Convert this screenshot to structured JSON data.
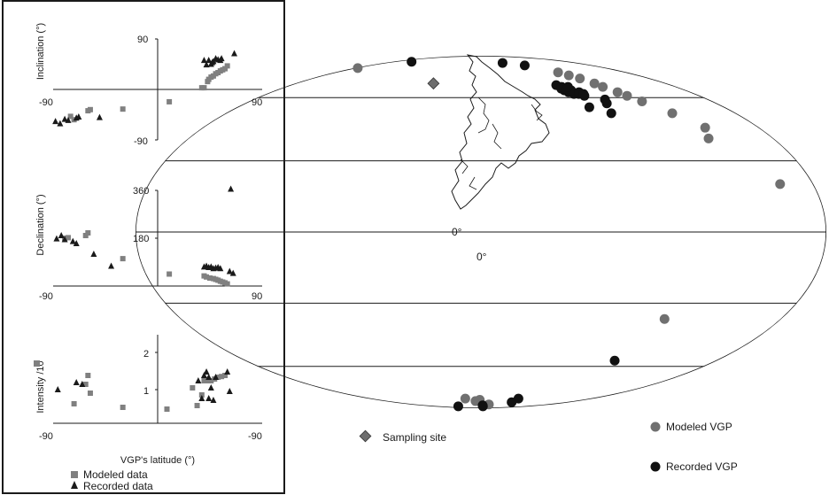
{
  "chart_data": [
    {
      "type": "scatter",
      "panel": "inclination",
      "xlabel": "",
      "ylabel": "Inclination (°)",
      "xlim": [
        -90,
        90
      ],
      "ylim": [
        -90,
        90
      ],
      "x_tick_labels": [
        "-90",
        "90"
      ],
      "y_tick_labels": [
        "90",
        "-90"
      ],
      "series": [
        {
          "name": "Modeled data",
          "marker": "square",
          "color": "#808080",
          "points": [
            [
              -75,
              -48
            ],
            [
              -72,
              -54
            ],
            [
              -60,
              -38
            ],
            [
              -58,
              -36
            ],
            [
              -30,
              -35
            ],
            [
              10,
              -22
            ],
            [
              38,
              3
            ],
            [
              40,
              3
            ],
            [
              43,
              14
            ],
            [
              44,
              18
            ],
            [
              46,
              22
            ],
            [
              48,
              24
            ],
            [
              50,
              28
            ],
            [
              52,
              30
            ],
            [
              54,
              33
            ],
            [
              56,
              35
            ],
            [
              58,
              37
            ],
            [
              60,
              42
            ]
          ]
        },
        {
          "name": "Recorded data",
          "marker": "triangle",
          "color": "#1a1a1a",
          "points": [
            [
              -88,
              -57
            ],
            [
              -84,
              -61
            ],
            [
              -80,
              -53
            ],
            [
              -77,
              -55
            ],
            [
              -70,
              -51
            ],
            [
              -68,
              -49
            ],
            [
              -50,
              -50
            ],
            [
              40,
              52
            ],
            [
              42,
              44
            ],
            [
              44,
              52
            ],
            [
              46,
              45
            ],
            [
              47,
              48
            ],
            [
              48,
              50
            ],
            [
              50,
              55
            ],
            [
              52,
              53
            ],
            [
              54,
              52
            ],
            [
              55,
              55
            ],
            [
              66,
              64
            ]
          ]
        }
      ]
    },
    {
      "type": "scatter",
      "panel": "declination",
      "xlabel": "",
      "ylabel": "Declination (°)",
      "xlim": [
        -90,
        90
      ],
      "ylim": [
        0,
        360
      ],
      "x_tick_labels": [
        "-90",
        "90"
      ],
      "y_tick_labels": [
        "360",
        "180"
      ],
      "series": [
        {
          "name": "Modeled data",
          "marker": "square",
          "color": "#808080",
          "points": [
            [
              -80,
              180
            ],
            [
              -77,
              182
            ],
            [
              -62,
              190
            ],
            [
              -60,
              200
            ],
            [
              -30,
              103
            ],
            [
              10,
              45
            ],
            [
              40,
              38
            ],
            [
              42,
              34
            ],
            [
              45,
              30
            ],
            [
              48,
              28
            ],
            [
              50,
              25
            ],
            [
              52,
              22
            ],
            [
              54,
              18
            ],
            [
              56,
              15
            ],
            [
              58,
              12
            ],
            [
              60,
              8
            ]
          ]
        },
        {
          "name": "Recorded data",
          "marker": "triangle",
          "color": "#1a1a1a",
          "points": [
            [
              -87,
              178
            ],
            [
              -83,
              190
            ],
            [
              -80,
              175
            ],
            [
              -73,
              168
            ],
            [
              -70,
              160
            ],
            [
              -55,
              120
            ],
            [
              -40,
              75
            ],
            [
              40,
              72
            ],
            [
              42,
              75
            ],
            [
              44,
              70
            ],
            [
              46,
              72
            ],
            [
              48,
              66
            ],
            [
              50,
              68
            ],
            [
              52,
              70
            ],
            [
              54,
              66
            ],
            [
              62,
              55
            ],
            [
              65,
              48
            ],
            [
              63,
              365
            ]
          ]
        }
      ]
    },
    {
      "type": "scatter",
      "panel": "intensity",
      "xlabel": "VGP's latitude (°)",
      "ylabel": "Intensity /10",
      "xlim": [
        -90,
        90
      ],
      "ylim": [
        0,
        2.5
      ],
      "x_tick_labels": [
        "-90",
        "-90"
      ],
      "y_tick_labels": [
        "2",
        "1"
      ],
      "series": [
        {
          "name": "Modeled data",
          "marker": "square",
          "color": "#808080",
          "points": [
            [
              -72,
              0.55
            ],
            [
              -62,
              1.1
            ],
            [
              -60,
              1.35
            ],
            [
              -58,
              0.85
            ],
            [
              -30,
              0.45
            ],
            [
              8,
              0.4
            ],
            [
              30,
              1.0
            ],
            [
              34,
              0.5
            ],
            [
              38,
              0.8
            ],
            [
              40,
              1.2
            ],
            [
              43,
              1.2
            ],
            [
              46,
              1.2
            ],
            [
              49,
              1.25
            ],
            [
              52,
              1.3
            ],
            [
              55,
              1.32
            ],
            [
              58,
              1.35
            ]
          ]
        },
        {
          "name": "Recorded data",
          "marker": "triangle",
          "color": "#1a1a1a",
          "points": [
            [
              -86,
              0.95
            ],
            [
              -70,
              1.15
            ],
            [
              -65,
              1.1
            ],
            [
              35,
              1.2
            ],
            [
              38,
              0.7
            ],
            [
              40,
              1.35
            ],
            [
              42,
              1.45
            ],
            [
              44,
              1.3
            ],
            [
              46,
              1.0
            ],
            [
              48,
              0.65
            ],
            [
              50,
              1.3
            ],
            [
              60,
              1.45
            ],
            [
              62,
              0.9
            ],
            [
              44,
              0.7
            ]
          ]
        }
      ]
    },
    {
      "type": "scatter",
      "panel": "vgp-map",
      "projection": "mollweide",
      "xlabel": "",
      "ylabel": "",
      "center_labels": [
        "0°",
        "0°"
      ],
      "series": [
        {
          "name": "Modeled VGP",
          "marker": "circle",
          "color": "#707070",
          "points": [
            [
              -175,
              78
            ],
            [
              95,
              75
            ],
            [
              100,
              73
            ],
            [
              105,
              71
            ],
            [
              110,
              68
            ],
            [
              112,
              66
            ],
            [
              117,
              63
            ],
            [
              120,
              61
            ],
            [
              125,
              58
            ],
            [
              135,
              52
            ],
            [
              145,
              45
            ],
            [
              140,
              40
            ],
            [
              162,
              20
            ],
            [
              110,
              -37
            ],
            [
              -25,
              -80
            ],
            [
              -10,
              -82
            ],
            [
              -2,
              -81
            ],
            [
              20,
              -85
            ]
          ]
        },
        {
          "name": "Recorded VGP",
          "marker": "circle",
          "color": "#111111",
          "points": [
            [
              -140,
              83
            ],
            [
              40,
              82
            ],
            [
              70,
              80
            ],
            [
              71,
              67
            ],
            [
              72,
              65
            ],
            [
              73,
              64
            ],
            [
              74,
              66
            ],
            [
              75,
              63
            ],
            [
              76,
              64
            ],
            [
              77,
              65
            ],
            [
              78,
              62
            ],
            [
              79,
              64
            ],
            [
              80,
              66
            ],
            [
              82,
              62
            ],
            [
              84,
              63
            ],
            [
              85,
              61
            ],
            [
              86,
              62
            ],
            [
              80,
              55
            ],
            [
              92,
              52
            ],
            [
              96,
              57
            ],
            [
              98,
              59
            ],
            [
              102,
              -57
            ],
            [
              60,
              -80
            ],
            [
              62,
              -83
            ],
            [
              5,
              -86
            ],
            [
              7,
              -87
            ],
            [
              -80,
              -87
            ]
          ]
        },
        {
          "name": "Sampling site",
          "marker": "diamond",
          "color": "#6e6e6e",
          "points": [
            [
              -46,
              68
            ]
          ]
        }
      ]
    }
  ],
  "legend_left": {
    "modeled_label": "Modeled data",
    "recorded_label": "Recorded data"
  },
  "legend_map": {
    "sampling_label": "Sampling site",
    "modeled_label": "Modeled VGP",
    "recorded_label": "Recorded VGP"
  }
}
